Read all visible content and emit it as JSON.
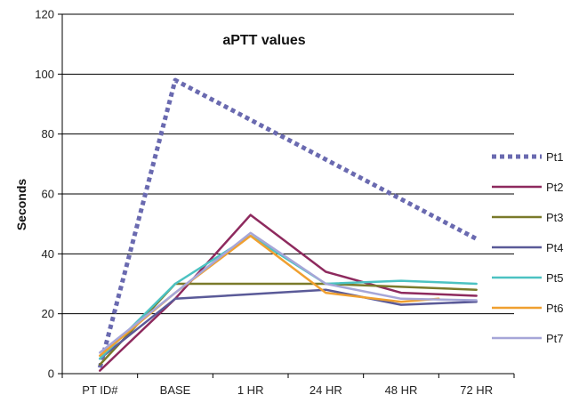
{
  "chart_data": {
    "type": "line",
    "title": "aPTT values",
    "xlabel": "",
    "ylabel": "Seconds",
    "categories": [
      "PT ID#",
      "BASE",
      "1 HR",
      "24 HR",
      "48 HR",
      "72 HR"
    ],
    "ylim": [
      0,
      120
    ],
    "yticks": [
      0,
      20,
      40,
      60,
      80,
      100,
      120
    ],
    "grid": "horizontal",
    "legend": "right",
    "series": [
      {
        "name": "Pt1",
        "color": "#6a6ab0",
        "style": "dotted",
        "x": [
          0,
          1,
          5
        ],
        "values": [
          2,
          98,
          45
        ]
      },
      {
        "name": "Pt2",
        "color": "#8e2a5e",
        "style": "solid",
        "x": [
          0,
          1,
          2,
          3,
          4,
          5
        ],
        "values": [
          1,
          25,
          53,
          34,
          27,
          26
        ]
      },
      {
        "name": "Pt3",
        "color": "#7a7a2a",
        "style": "solid",
        "x": [
          0,
          1,
          2,
          3,
          4,
          5
        ],
        "values": [
          3,
          30,
          30,
          30,
          29,
          28
        ]
      },
      {
        "name": "Pt4",
        "color": "#5a5a98",
        "style": "solid",
        "x": [
          0,
          1,
          2,
          3,
          4,
          5
        ],
        "values": [
          5,
          25,
          26.5,
          28,
          23,
          24
        ]
      },
      {
        "name": "Pt5",
        "color": "#4cc2c2",
        "style": "solid",
        "x": [
          0,
          1,
          2,
          3,
          4,
          5
        ],
        "values": [
          5,
          30,
          46,
          30,
          31,
          30
        ]
      },
      {
        "name": "Pt6",
        "color": "#f0a030",
        "style": "solid",
        "x": [
          0,
          1,
          2,
          3,
          4,
          4.5
        ],
        "values": [
          6,
          27,
          46,
          27,
          24,
          25
        ]
      },
      {
        "name": "Pt7",
        "color": "#a6a6d8",
        "style": "solid",
        "x": [
          0,
          1,
          2,
          3,
          4,
          5
        ],
        "values": [
          7,
          27,
          47,
          30,
          25,
          24.5
        ]
      }
    ]
  }
}
